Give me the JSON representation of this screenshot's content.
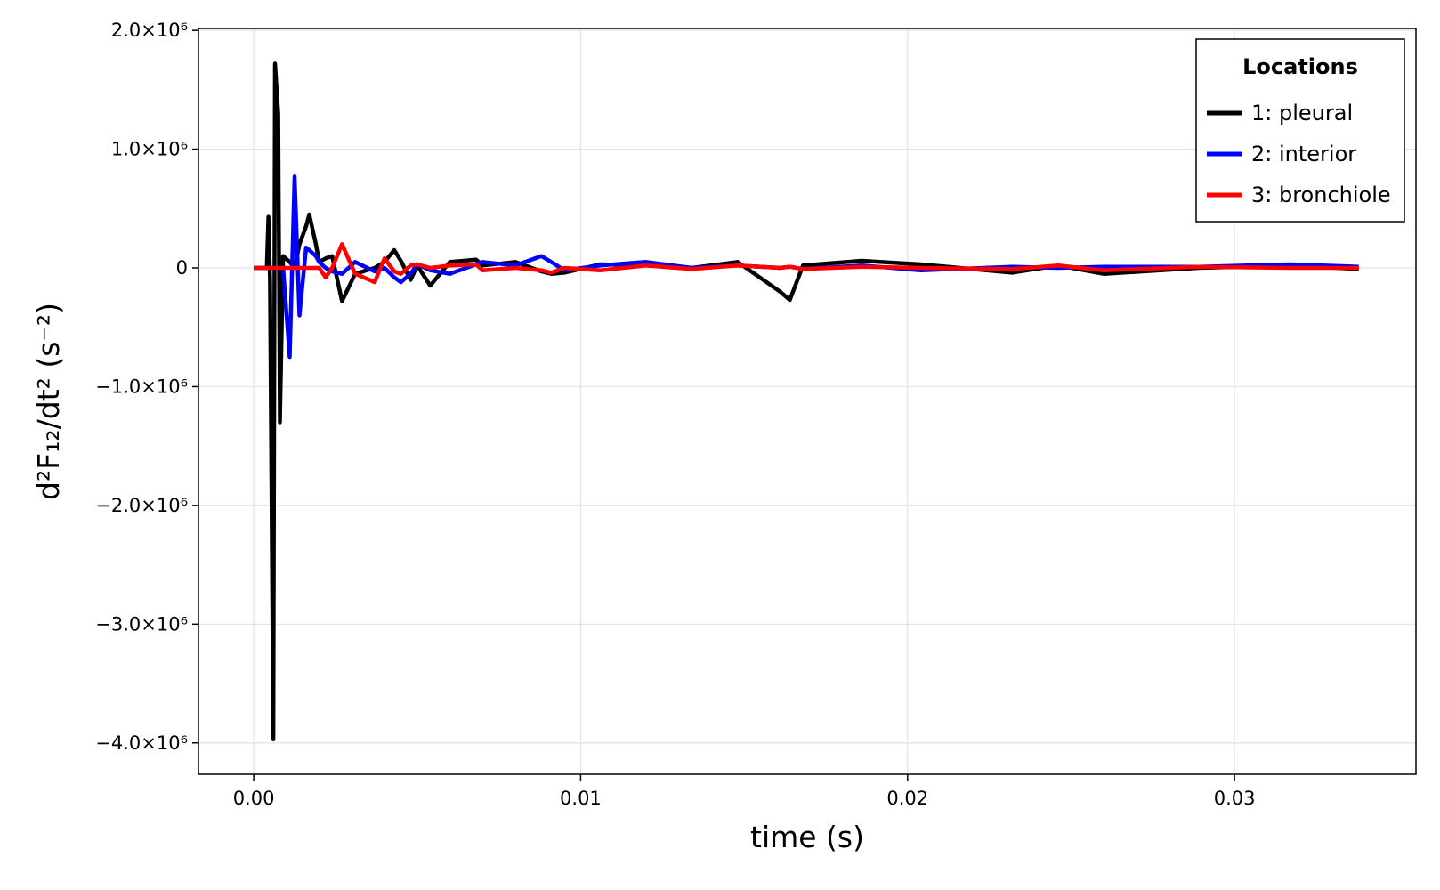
{
  "chart_data": {
    "type": "line",
    "xlabel": "time (s)",
    "ylabel": "d²F₁₂/dt² (s⁻²)",
    "xlim": [
      -0.00169,
      0.03555
    ],
    "ylim": [
      -4264000,
      2016000
    ],
    "xticks": [
      {
        "value": 0,
        "label": "0.00"
      },
      0.01,
      0.02,
      0.03
    ],
    "yticks": [
      {
        "value": -4000000,
        "label": "−4.0×10⁶"
      },
      {
        "value": -3000000,
        "label": "−3.0×10⁶"
      },
      {
        "value": -2000000,
        "label": "−2.0×10⁶"
      },
      {
        "value": -1000000,
        "label": "−1.0×10⁶"
      },
      0,
      {
        "value": 1000000,
        "label": "1.0×10⁶"
      },
      {
        "value": 2000000,
        "label": "2.0×10⁶"
      }
    ],
    "grid": true,
    "legend_title": "Locations",
    "legend_position": "top-right",
    "x": [
      0,
      0.0004,
      0.00045,
      0.0005,
      0.0006,
      0.00065,
      0.00075,
      0.0008,
      0.0009,
      0.0011,
      0.00125,
      0.0014,
      0.0016,
      0.0017,
      0.0019,
      0.002,
      0.0022,
      0.0024,
      0.0027,
      0.0031,
      0.0037,
      0.004,
      0.0043,
      0.0045,
      0.0048,
      0.005,
      0.0054,
      0.006,
      0.0068,
      0.007,
      0.008,
      0.0088,
      0.0091,
      0.0095,
      0.0106,
      0.012,
      0.0134,
      0.0148,
      0.0161,
      0.0164,
      0.0168,
      0.0186,
      0.0204,
      0.0232,
      0.0246,
      0.026,
      0.0289,
      0.0317,
      0.0338
    ],
    "series": [
      {
        "name": "1: pleural",
        "color": "#000000",
        "values": [
          0,
          0,
          430000,
          -100000,
          -3970000,
          1720000,
          1300000,
          -1300000,
          100000,
          50000,
          0,
          200000,
          350000,
          450000,
          200000,
          50000,
          80000,
          100000,
          -280000,
          -50000,
          0,
          50000,
          150000,
          60000,
          -100000,
          20000,
          -150000,
          50000,
          70000,
          20000,
          50000,
          -30000,
          -50000,
          -40000,
          30000,
          20000,
          0,
          50000,
          -200000,
          -270000,
          20000,
          60000,
          30000,
          -40000,
          20000,
          -50000,
          0,
          20000,
          -10000
        ]
      },
      {
        "name": "2: interior",
        "color": "#0000ff",
        "values": [
          0,
          0,
          0,
          0,
          0,
          0,
          0,
          0,
          0,
          -750000,
          770000,
          -400000,
          170000,
          150000,
          100000,
          50000,
          0,
          -30000,
          -50000,
          50000,
          -30000,
          0,
          -80000,
          -120000,
          -50000,
          30000,
          -20000,
          -50000,
          30000,
          50000,
          20000,
          100000,
          50000,
          -20000,
          20000,
          50000,
          0,
          20000,
          0,
          10000,
          -10000,
          20000,
          -20000,
          10000,
          0,
          10000,
          10000,
          30000,
          10000
        ]
      },
      {
        "name": "3: bronchiole",
        "color": "#ff0000",
        "values": [
          0,
          0,
          0,
          0,
          0,
          0,
          0,
          0,
          0,
          0,
          0,
          0,
          0,
          0,
          0,
          0,
          -80000,
          0,
          200000,
          -50000,
          -120000,
          80000,
          -30000,
          -50000,
          20000,
          30000,
          0,
          20000,
          30000,
          -20000,
          0,
          -20000,
          -40000,
          0,
          -20000,
          20000,
          -10000,
          20000,
          0,
          10000,
          -10000,
          10000,
          0,
          -10000,
          20000,
          -20000,
          10000,
          0,
          0
        ]
      }
    ]
  }
}
